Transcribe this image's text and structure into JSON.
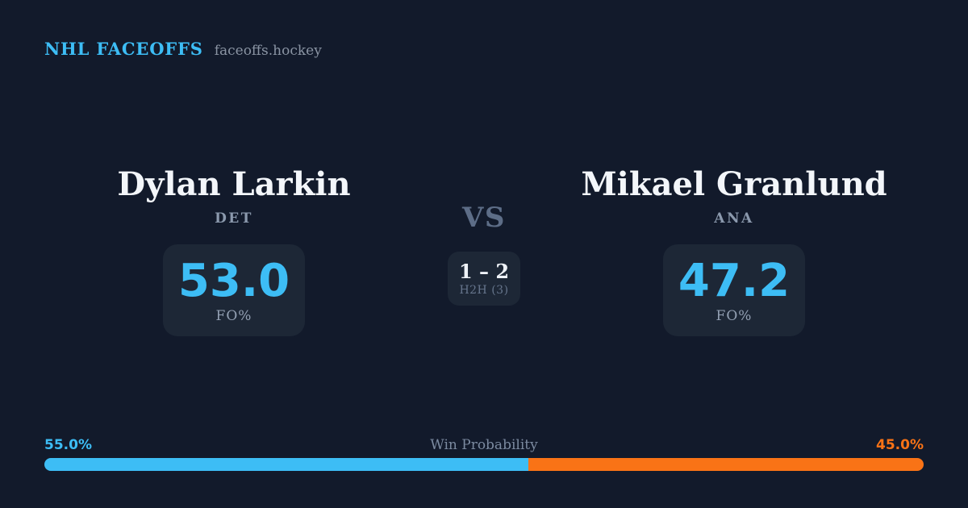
{
  "header": {
    "brand": "NHL FACEOFFS",
    "site": "faceoffs.hockey"
  },
  "players": [
    {
      "name": "Dylan Larkin",
      "team": "DET",
      "fo_pct": "53.0",
      "fo_label": "FO%"
    },
    {
      "name": "Mikael Granlund",
      "team": "ANA",
      "fo_pct": "47.2",
      "fo_label": "FO%"
    }
  ],
  "center": {
    "vs_label": "VS",
    "h2h_score": "1 – 2",
    "h2h_label": "H2H (3)"
  },
  "win_probability": {
    "title": "Win Probability",
    "left_pct": "55.0%",
    "right_pct": "45.0%",
    "left_value": 55.0,
    "right_value": 45.0
  },
  "colors": {
    "background": "#121a2b",
    "card": "#1d2736",
    "accent_blue": "#3dbdf5",
    "accent_orange": "#f97316",
    "text_primary": "#f3f6fa",
    "text_muted": "#8b99ad"
  }
}
